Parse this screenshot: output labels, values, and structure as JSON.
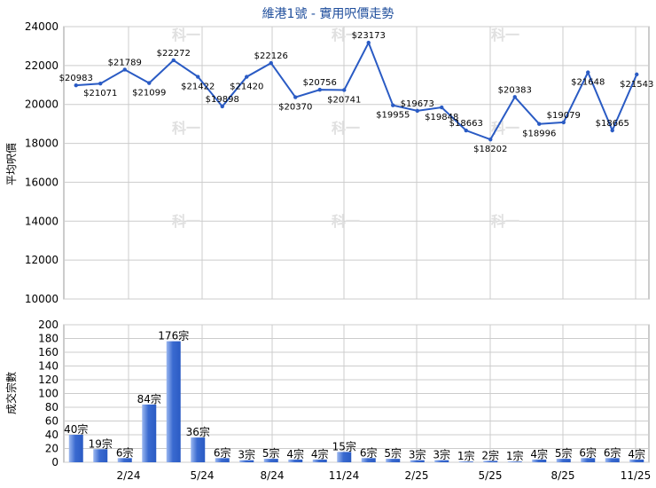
{
  "title": "維港1號 - 實用呎價走勢",
  "watermark": "科一",
  "colors": {
    "title": "#1f4e9c",
    "line": "#2a5bc4",
    "bar": "#3a6ad0",
    "bar_light": "#9cb8f0",
    "grid": "#cccccc",
    "watermark": "#e0e0e0"
  },
  "chart_data": [
    {
      "type": "line",
      "title": "維港1號 - 實用呎價走勢",
      "ylabel": "平均呎價",
      "ylim": [
        10000,
        24000
      ],
      "yticks": [
        10000,
        12000,
        14000,
        16000,
        18000,
        20000,
        22000,
        24000
      ],
      "grid": true,
      "series": [
        {
          "values": [
            20983,
            21071,
            21789,
            21099,
            22272,
            21422,
            19898,
            21420,
            22126,
            20370,
            20756,
            20741,
            23173,
            19955,
            19673,
            19848,
            18663,
            18202,
            20383,
            18996,
            19079,
            21648,
            18665,
            21543
          ],
          "labels": [
            "$20983",
            "$21071",
            "$21789",
            "$21099",
            "$22272",
            "$21422",
            "$19898",
            "$21420",
            "$22126",
            "$20370",
            "$20756",
            "$20741",
            "$23173",
            "$19955",
            "$19673",
            "$19848",
            "$18663",
            "$18202",
            "$20383",
            "$18996",
            "$19079",
            "$21648",
            "$18665",
            "$21543"
          ]
        }
      ]
    },
    {
      "type": "bar",
      "ylabel": "成交宗數",
      "ylim": [
        0,
        200
      ],
      "yticks": [
        0,
        20,
        40,
        60,
        80,
        100,
        120,
        140,
        160,
        180,
        200
      ],
      "xtick_labels": [
        "2/24",
        "5/24",
        "8/24",
        "11/24",
        "2/25",
        "5/25",
        "8/25",
        "11/25"
      ],
      "grid": true,
      "values": [
        40,
        19,
        6,
        84,
        176,
        36,
        6,
        3,
        5,
        4,
        4,
        15,
        6,
        5,
        3,
        3,
        1,
        2,
        1,
        4,
        5,
        6,
        6,
        4
      ],
      "labels": [
        "40宗",
        "19宗",
        "6宗",
        "84宗",
        "176宗",
        "36宗",
        "6宗",
        "3宗",
        "5宗",
        "4宗",
        "4宗",
        "15宗",
        "6宗",
        "5宗",
        "3宗",
        "3宗",
        "1宗",
        "2宗",
        "1宗",
        "4宗",
        "5宗",
        "6宗",
        "6宗",
        "4宗"
      ]
    }
  ]
}
